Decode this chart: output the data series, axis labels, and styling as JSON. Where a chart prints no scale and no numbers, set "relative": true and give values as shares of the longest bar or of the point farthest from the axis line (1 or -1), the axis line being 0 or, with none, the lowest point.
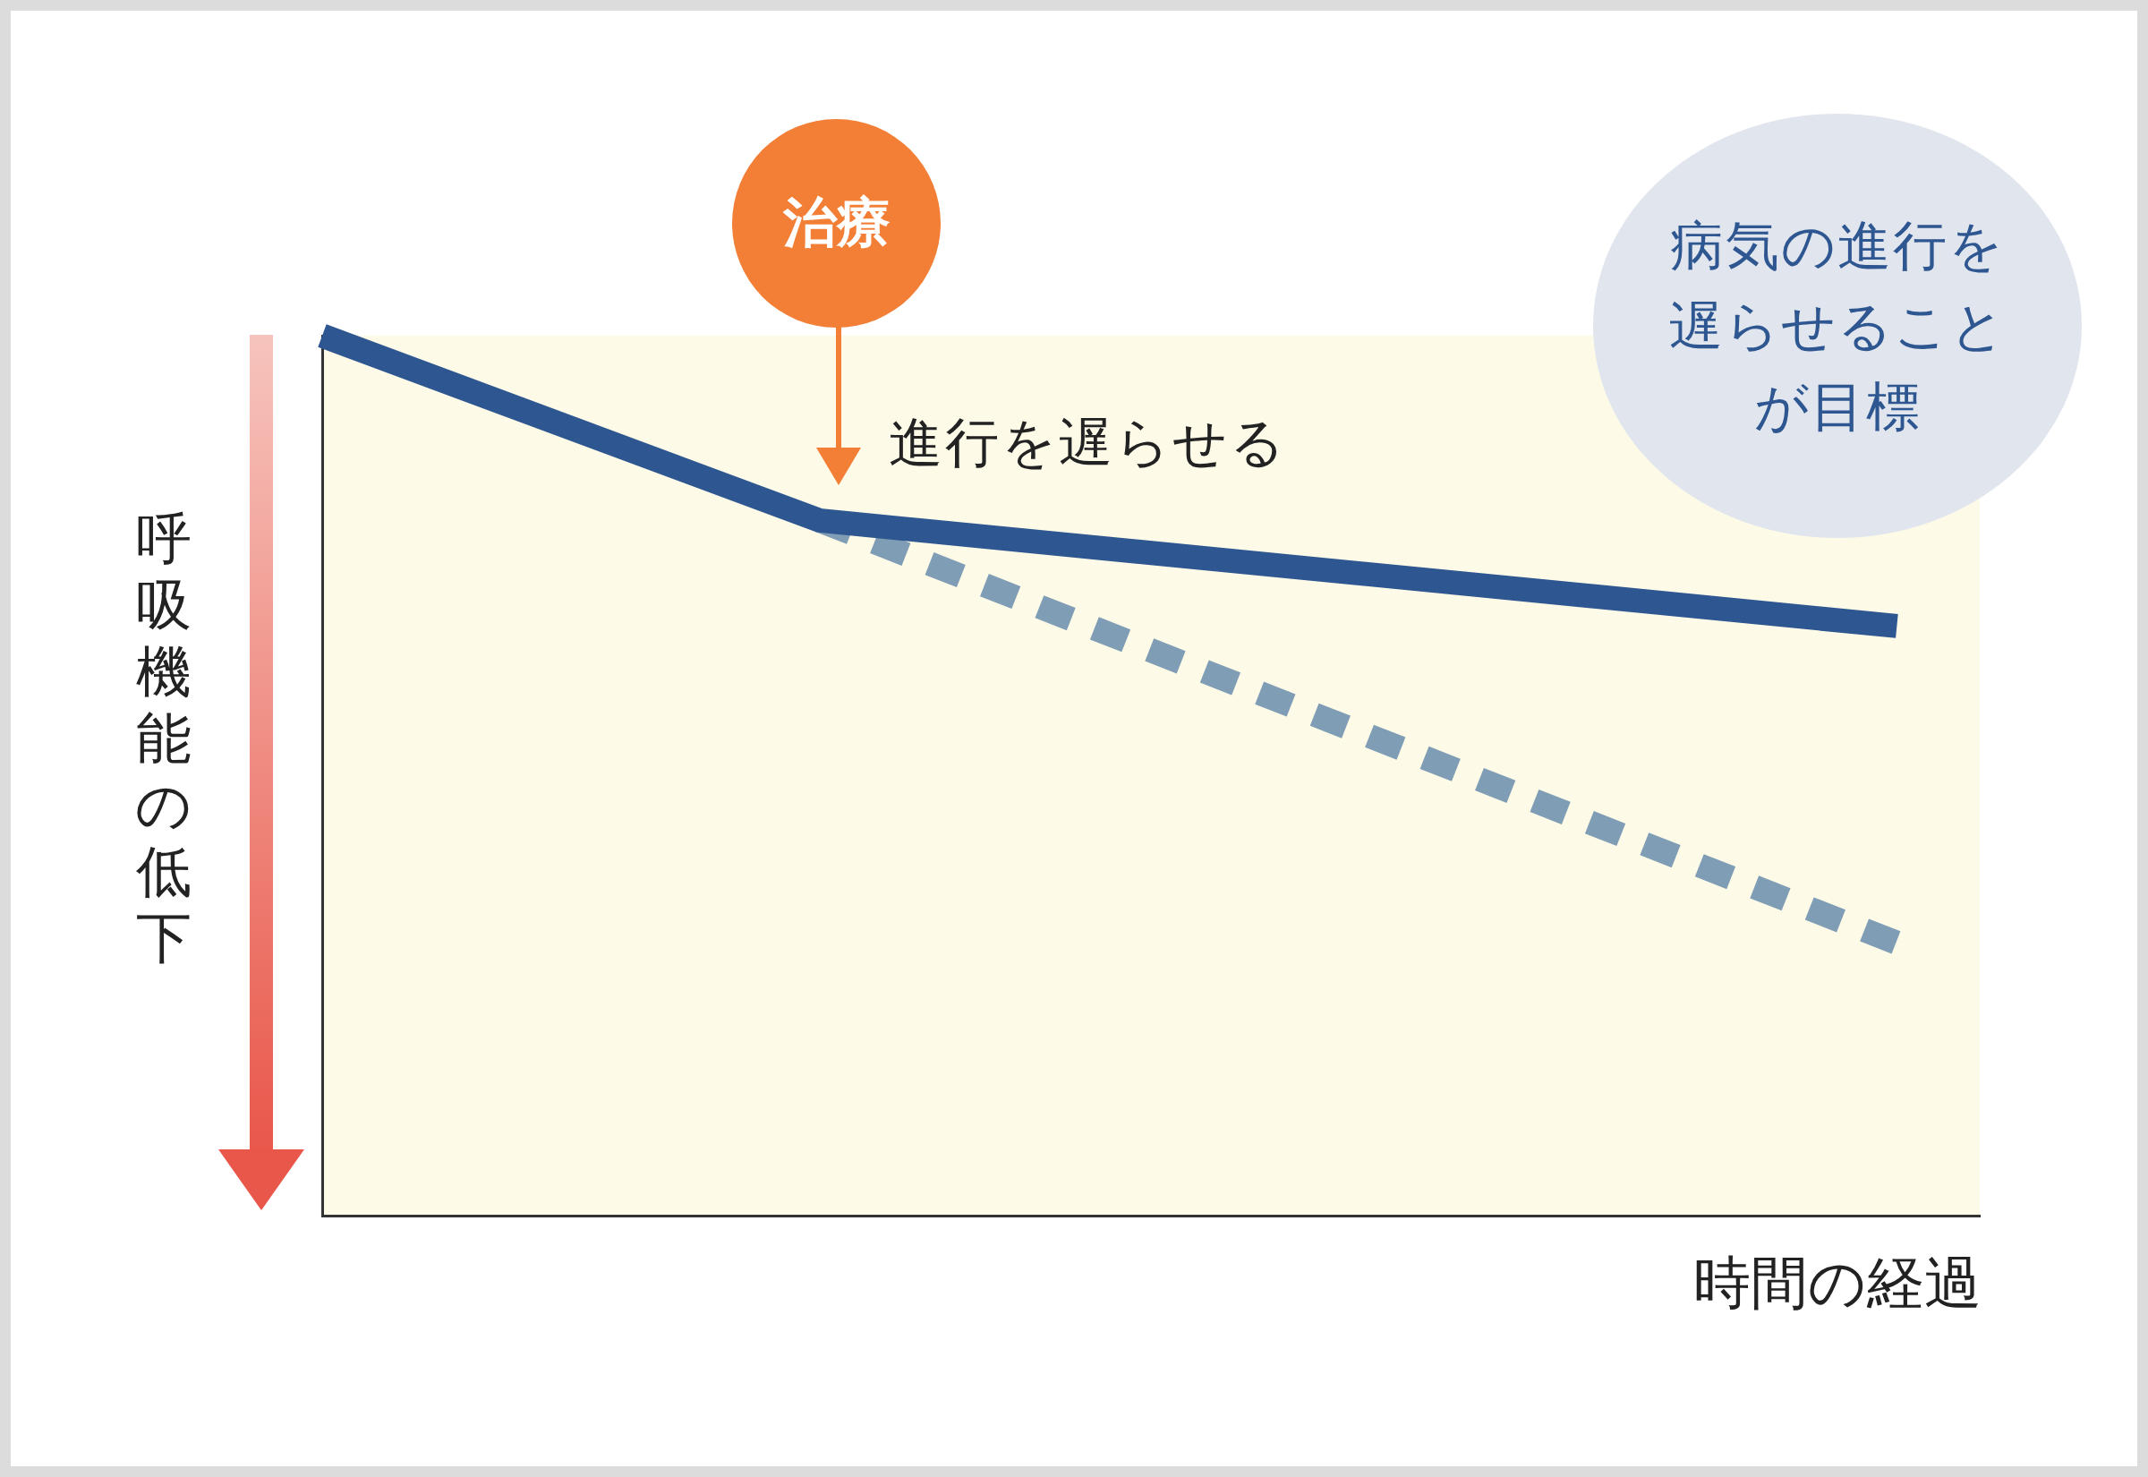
{
  "chart_data": {
    "type": "line",
    "relative": true,
    "tick_labels": false,
    "grid": false,
    "legend": false,
    "xlabel": "時間の経過",
    "ylabel": "呼吸機能の低下",
    "annotations": [
      "治療",
      "進行を遅らせる",
      "病気の進行を遅らせることが目標"
    ],
    "categories": [
      null,
      null,
      null,
      null,
      null,
      null,
      null,
      null,
      null,
      null,
      null,
      null,
      null,
      null,
      null,
      null,
      null,
      null,
      null,
      null,
      null
    ],
    "series": [
      {
        "color": "#2e5690",
        "line_style": "solid",
        "values": [
          1,
          null,
          null,
          null,
          null,
          null,
          0.79,
          null,
          null,
          null,
          null,
          null,
          null,
          null,
          null,
          null,
          null,
          null,
          null,
          0.67,
          null
        ]
      },
      {
        "color": "#7f9db5",
        "line_style": "dashed",
        "values": [
          null,
          null,
          null,
          null,
          null,
          null,
          0.79,
          null,
          null,
          null,
          null,
          null,
          null,
          null,
          null,
          null,
          null,
          null,
          null,
          0.31,
          null
        ]
      }
    ]
  }
}
